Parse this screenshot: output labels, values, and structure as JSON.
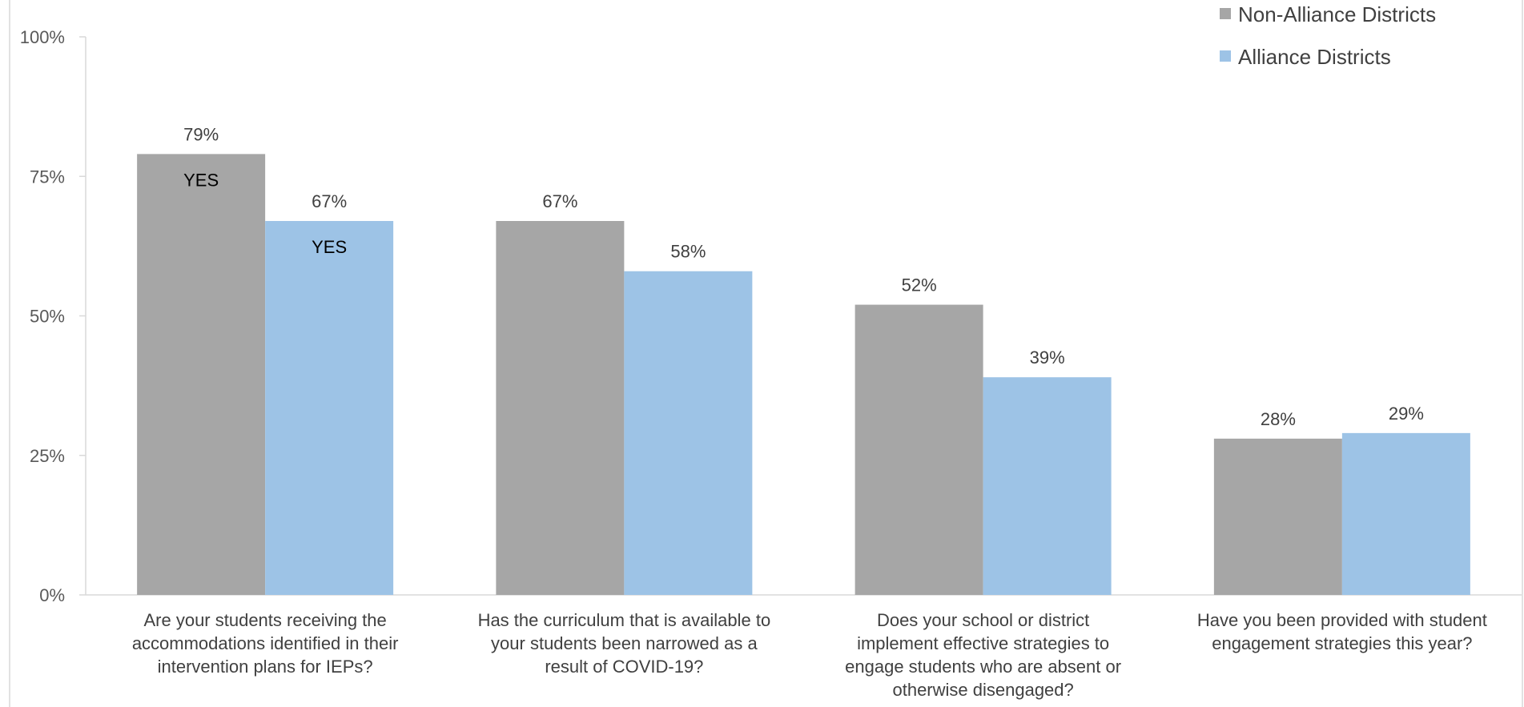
{
  "chart_data": {
    "type": "bar",
    "categories": [
      "Are your students receiving the accommodations identified in their intervention plans for IEPs?",
      "Has the curriculum that is available to your students been narrowed as a result of COVID-19?",
      "Does your school or district implement effective strategies to engage students who are absent or otherwise disengaged?",
      "Have you been provided with student engagement strategies this year?"
    ],
    "category_lines": [
      [
        "Are your students receiving the",
        "accommodations identified in their",
        "intervention plans for IEPs?"
      ],
      [
        "Has the curriculum that is available to",
        "your students been narrowed as a",
        "result of COVID-19?"
      ],
      [
        "Does your school or district",
        "implement effective strategies to",
        "engage students who are absent or",
        "otherwise disengaged?"
      ],
      [
        "Have you been provided with student",
        "engagement strategies this year?"
      ]
    ],
    "series": [
      {
        "name": "Non-Alliance Districts",
        "color": "#a6a6a6",
        "values": [
          79,
          67,
          52,
          28
        ],
        "labels": [
          "79%",
          "67%",
          "52%",
          "28%"
        ],
        "inner_labels": [
          "YES",
          "",
          "",
          ""
        ]
      },
      {
        "name": "Alliance Districts",
        "color": "#9dc3e6",
        "values": [
          67,
          58,
          39,
          29
        ],
        "labels": [
          "67%",
          "58%",
          "39%",
          "29%"
        ],
        "inner_labels": [
          "YES",
          "",
          "",
          ""
        ]
      }
    ],
    "yticks": [
      0,
      25,
      50,
      75,
      100
    ],
    "ytick_labels": [
      "0%",
      "25%",
      "50%",
      "75%",
      "100%"
    ],
    "ylim": [
      0,
      100
    ],
    "title": "",
    "xlabel": "",
    "ylabel": "",
    "legend_position": "top-right",
    "grid": false
  }
}
